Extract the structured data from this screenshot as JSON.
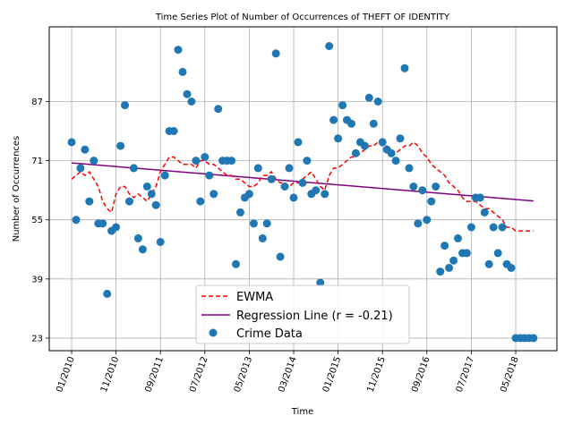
{
  "chart_data": {
    "type": "scatter",
    "title": "Time Series Plot of Number of Occurrences of THEFT OF IDENTITY",
    "xlabel": "Time",
    "ylabel": "Number of Occurrences",
    "x_tick_labels": [
      "01/2010",
      "11/2010",
      "09/2011",
      "07/2012",
      "05/2013",
      "03/2014",
      "01/2015",
      "11/2015",
      "09/2016",
      "07/2017",
      "05/2018"
    ],
    "y_ticks": [
      23,
      39,
      55,
      71,
      87
    ],
    "ylim": [
      19.6,
      107.2
    ],
    "grid": true,
    "legend": {
      "position": "bottom-center",
      "entries": [
        "EWMA",
        "Regression Line (r = -0.21)",
        "Crime Data"
      ]
    },
    "colors": {
      "ewma": "#ff0000",
      "regression": "#800080",
      "points": "#1f77b4"
    },
    "regression_line": {
      "start": 70.4,
      "end": 60.1
    },
    "series": [
      {
        "name": "Crime Data",
        "x": [
          "2010-01",
          "2010-02",
          "2010-03",
          "2010-04",
          "2010-05",
          "2010-06",
          "2010-07",
          "2010-08",
          "2010-09",
          "2010-10",
          "2010-11",
          "2010-12",
          "2011-01",
          "2011-02",
          "2011-03",
          "2011-04",
          "2011-05",
          "2011-06",
          "2011-07",
          "2011-08",
          "2011-09",
          "2011-10",
          "2011-11",
          "2011-12",
          "2012-01",
          "2012-02",
          "2012-03",
          "2012-04",
          "2012-05",
          "2012-06",
          "2012-07",
          "2012-08",
          "2012-09",
          "2012-10",
          "2012-11",
          "2012-12",
          "2013-01",
          "2013-02",
          "2013-03",
          "2013-04",
          "2013-05",
          "2013-06",
          "2013-07",
          "2013-08",
          "2013-09",
          "2013-10",
          "2013-11",
          "2013-12",
          "2014-01",
          "2014-02",
          "2014-03",
          "2014-04",
          "2014-05",
          "2014-06",
          "2014-07",
          "2014-08",
          "2014-09",
          "2014-10",
          "2014-11",
          "2014-12",
          "2015-01",
          "2015-02",
          "2015-03",
          "2015-04",
          "2015-05",
          "2015-06",
          "2015-07",
          "2015-08",
          "2015-09",
          "2015-10",
          "2015-11",
          "2015-12",
          "2016-01",
          "2016-02",
          "2016-03",
          "2016-04",
          "2016-05",
          "2016-06",
          "2016-07",
          "2016-08",
          "2016-09",
          "2016-10",
          "2016-11",
          "2016-12",
          "2017-01",
          "2017-02",
          "2017-03",
          "2017-04",
          "2017-05",
          "2017-06",
          "2017-07",
          "2017-08",
          "2017-09",
          "2017-10",
          "2017-11",
          "2017-12",
          "2018-01",
          "2018-02",
          "2018-03",
          "2018-04",
          "2018-05",
          "2018-06",
          "2018-07",
          "2018-08",
          "2018-09"
        ],
        "values": [
          76,
          55,
          69,
          74,
          60,
          71,
          54,
          54,
          35,
          52,
          53,
          75,
          86,
          60,
          69,
          50,
          47,
          64,
          62,
          59,
          49,
          67,
          79,
          79,
          101,
          95,
          89,
          87,
          71,
          60,
          72,
          67,
          62,
          85,
          71,
          71,
          71,
          43,
          57,
          61,
          62,
          54,
          69,
          50,
          54,
          66,
          100,
          45,
          64,
          69,
          61,
          76,
          65,
          71,
          62,
          63,
          38,
          62,
          102,
          82,
          77,
          86,
          82,
          81,
          73,
          76,
          75,
          88,
          81,
          87,
          76,
          74,
          73,
          71,
          77,
          96,
          69,
          64,
          54,
          63,
          55,
          60,
          64,
          41,
          48,
          42,
          44,
          50,
          46,
          46,
          53,
          61,
          61,
          57,
          43,
          53,
          46,
          53,
          43,
          42,
          23,
          23,
          23,
          23,
          23
        ]
      },
      {
        "name": "EWMA",
        "values": [
          66,
          67,
          68,
          67,
          68,
          66,
          64,
          60,
          58,
          57,
          62,
          64,
          64,
          62,
          61,
          62,
          61,
          60,
          62,
          64,
          68,
          70,
          72,
          72,
          71,
          70,
          70,
          70,
          69,
          71,
          71,
          70,
          70,
          69,
          68,
          67,
          67,
          66,
          66,
          65,
          64,
          64,
          65,
          67,
          67,
          68,
          66,
          65,
          65,
          64,
          65,
          65,
          66,
          67,
          68,
          66,
          64,
          63,
          67,
          69,
          69,
          70,
          71,
          72,
          72,
          73,
          74,
          75,
          75,
          76,
          75,
          75,
          74,
          73,
          74,
          75,
          75,
          76,
          75,
          73,
          72,
          70,
          69,
          68,
          67,
          65,
          64,
          63,
          61,
          60,
          60,
          60,
          59,
          58,
          58,
          57,
          56,
          55,
          53,
          53,
          52,
          52,
          52,
          52,
          52
        ]
      }
    ]
  }
}
